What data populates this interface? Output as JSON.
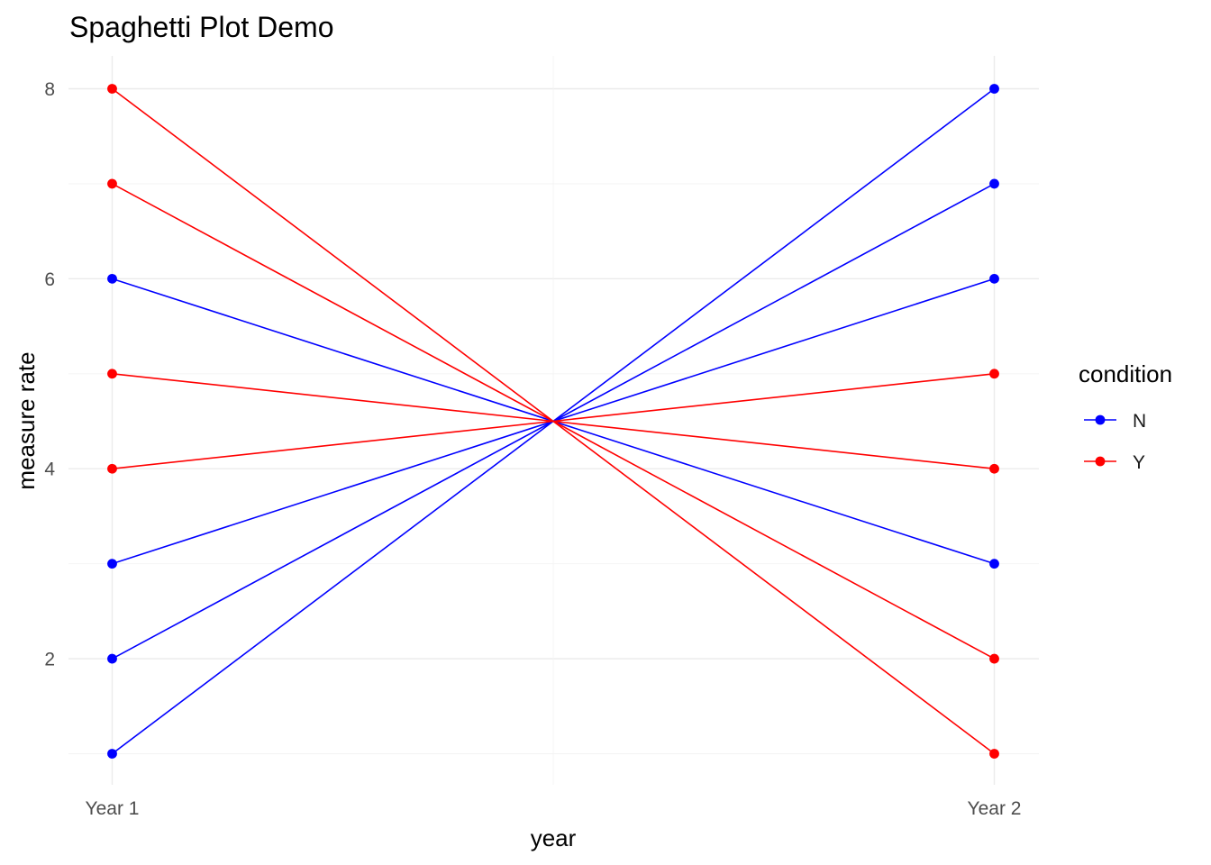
{
  "chart_data": {
    "type": "line",
    "title": "Spaghetti Plot Demo",
    "xlabel": "year",
    "ylabel": "measure rate",
    "categories": [
      "Year 1",
      "Year 2"
    ],
    "ylim": [
      0.65,
      8.35
    ],
    "y_ticks": [
      2,
      4,
      6,
      8
    ],
    "grid": true,
    "legend": {
      "title": "condition",
      "position": "right",
      "entries": [
        {
          "label": "N",
          "color": "#0000ff"
        },
        {
          "label": "Y",
          "color": "#ff0000"
        }
      ]
    },
    "lines": [
      {
        "condition": "N",
        "color": "#0000ff",
        "values": [
          6,
          3
        ]
      },
      {
        "condition": "N",
        "color": "#0000ff",
        "values": [
          3,
          6
        ]
      },
      {
        "condition": "N",
        "color": "#0000ff",
        "values": [
          2,
          7
        ]
      },
      {
        "condition": "N",
        "color": "#0000ff",
        "values": [
          1,
          8
        ]
      },
      {
        "condition": "Y",
        "color": "#ff0000",
        "values": [
          8,
          1
        ]
      },
      {
        "condition": "Y",
        "color": "#ff0000",
        "values": [
          7,
          2
        ]
      },
      {
        "condition": "Y",
        "color": "#ff0000",
        "values": [
          5,
          4
        ]
      },
      {
        "condition": "Y",
        "color": "#ff0000",
        "values": [
          4,
          5
        ]
      }
    ]
  }
}
